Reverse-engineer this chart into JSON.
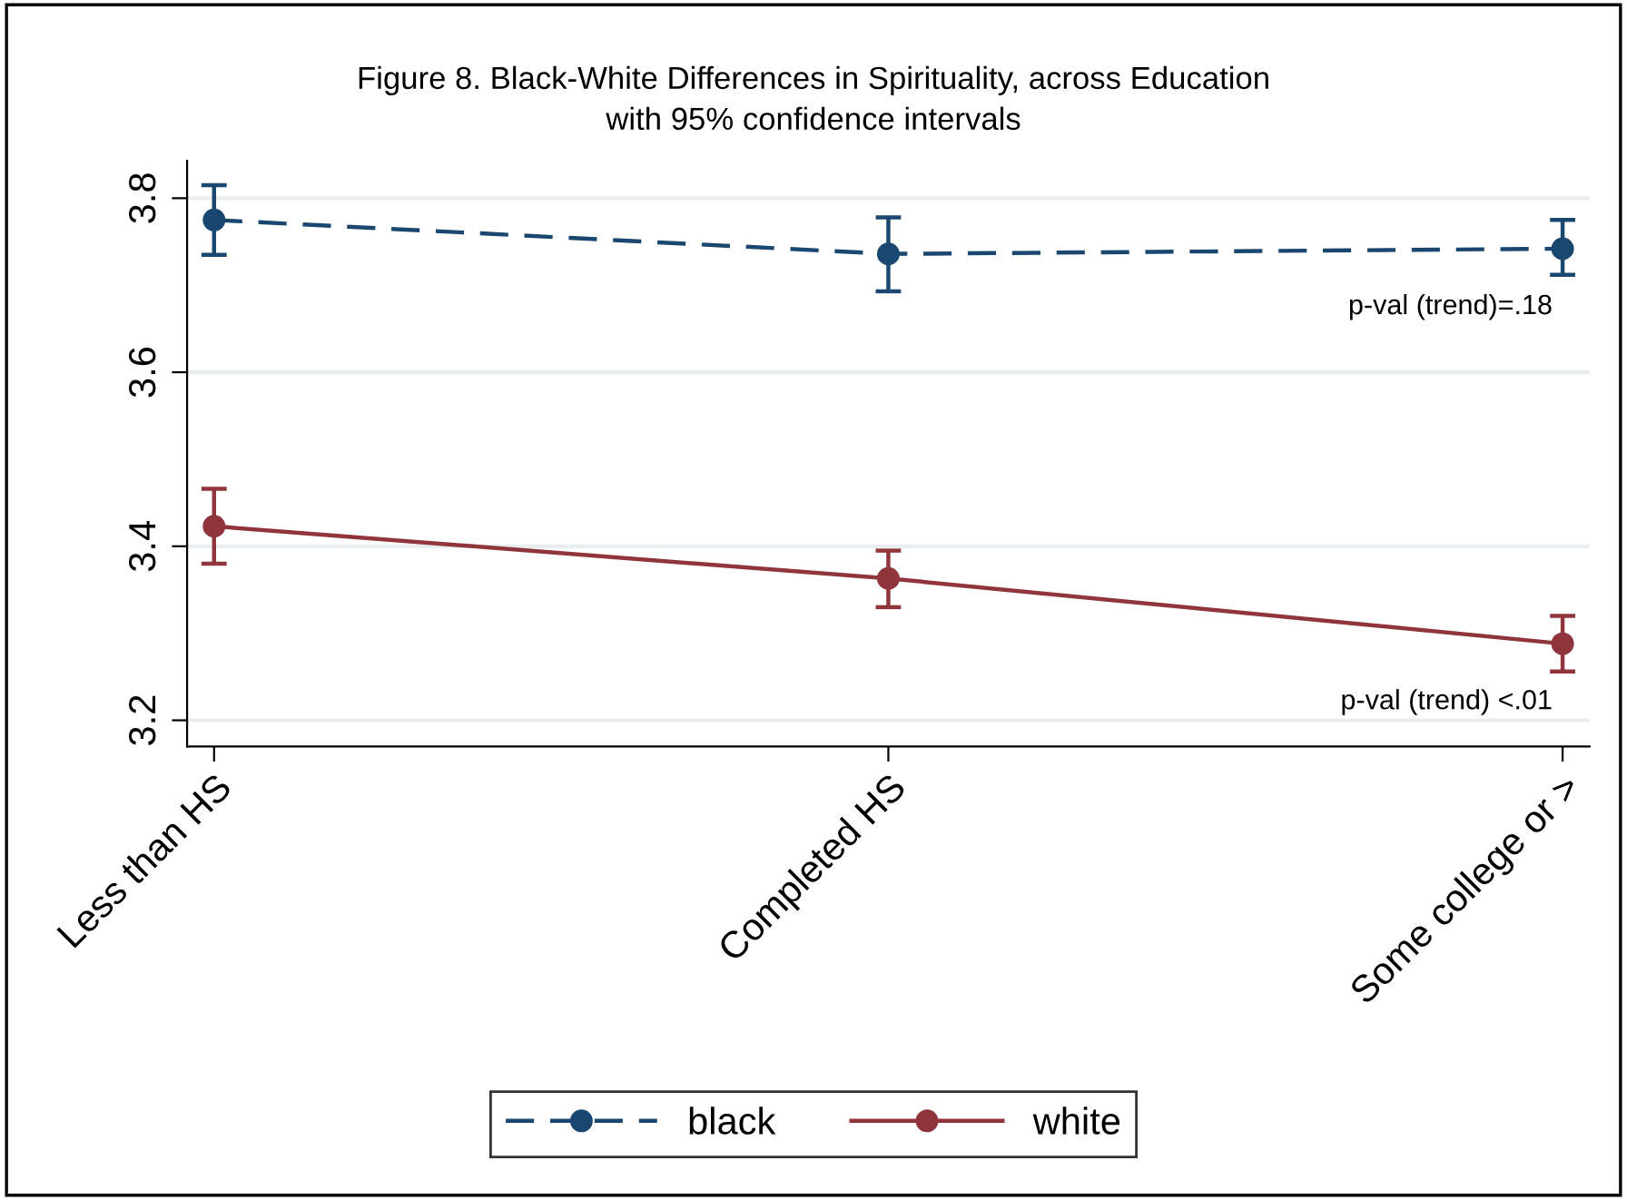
{
  "chart_data": {
    "type": "line",
    "title": "Figure 8. Black-White Differences in Spirituality, across Education\nwith 95% confidence intervals",
    "categories": [
      "Less than HS",
      "Completed HS",
      "Some college or >"
    ],
    "series": [
      {
        "name": "black",
        "color": "#1a476f",
        "line_style": "dashed",
        "values": [
          3.775,
          3.736,
          3.742
        ],
        "errors": [
          [
            3.735,
            3.815
          ],
          [
            3.693,
            3.778
          ],
          [
            3.712,
            3.775
          ]
        ]
      },
      {
        "name": "white",
        "color": "#90353b",
        "line_style": "solid",
        "values": [
          3.423,
          3.363,
          3.288
        ],
        "errors": [
          [
            3.38,
            3.466
          ],
          [
            3.33,
            3.395
          ],
          [
            3.256,
            3.32
          ]
        ]
      }
    ],
    "annotations": [
      "p-val (trend)=.18",
      "p-val (trend) <.01"
    ],
    "ylim": [
      3.17,
      3.843
    ],
    "yticks": [
      3.2,
      3.4,
      3.6,
      3.8
    ],
    "grid": "y",
    "legend": "bottom",
    "marker": "circle"
  }
}
